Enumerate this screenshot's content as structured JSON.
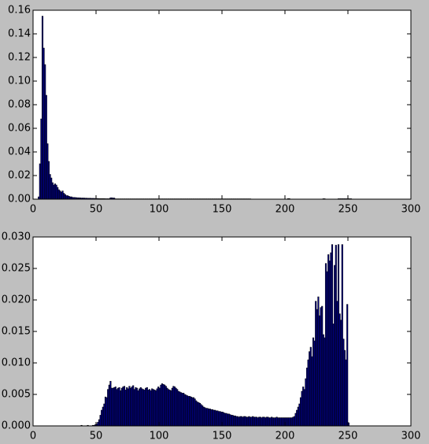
{
  "chart_data": [
    {
      "type": "histogram",
      "color": "#000080",
      "edgecolor": "#000000",
      "bins": [
        0,
        1,
        2,
        3,
        4,
        5,
        6,
        7,
        8,
        9,
        10,
        11,
        12,
        13,
        14,
        15,
        16,
        17,
        18,
        19,
        20,
        21,
        22,
        23,
        24,
        25,
        26,
        27,
        28,
        29,
        30,
        31,
        32,
        33,
        34,
        35,
        36,
        37,
        38,
        39,
        40,
        41,
        42,
        43,
        44,
        45,
        46,
        47,
        48,
        49,
        50,
        51,
        52,
        53,
        54,
        55,
        56,
        57,
        58,
        59,
        60,
        61,
        62,
        63,
        64,
        65,
        66,
        67,
        68,
        69,
        70,
        71,
        72,
        73,
        74,
        75,
        76,
        77,
        78,
        79,
        80,
        81,
        82,
        83,
        84,
        85,
        86,
        87,
        88,
        89,
        90,
        91,
        92,
        93,
        94,
        95,
        96,
        97,
        98,
        99,
        100,
        101,
        102,
        103,
        104,
        105,
        106,
        107,
        108,
        109,
        110,
        111,
        112,
        113,
        114,
        115,
        116,
        117,
        118,
        119,
        120,
        121,
        122,
        123,
        124,
        125,
        126,
        127,
        128,
        129,
        130,
        131,
        132,
        133,
        134,
        135,
        136,
        137,
        138,
        139,
        140,
        141,
        142,
        143,
        144,
        145,
        146,
        147,
        148,
        149,
        150,
        151,
        152,
        153,
        154,
        155,
        156,
        157,
        158,
        159,
        160,
        161,
        162,
        163,
        164,
        165,
        166,
        167,
        168,
        169,
        170,
        171,
        172,
        173,
        174,
        175,
        176,
        177,
        178,
        179,
        180,
        181,
        182,
        183,
        184,
        185,
        186,
        187,
        188,
        189,
        190,
        191,
        192,
        193,
        194,
        195,
        196,
        197,
        198,
        199,
        200,
        201,
        202,
        203,
        204,
        205,
        206,
        207,
        208,
        209,
        210,
        211,
        212,
        213,
        214,
        215,
        216,
        217,
        218,
        219,
        220,
        221,
        222,
        223,
        224,
        225,
        226,
        227,
        228,
        229,
        230,
        231,
        232,
        233,
        234,
        235,
        236,
        237,
        238,
        239,
        240,
        241,
        242,
        243,
        244,
        245,
        246,
        247,
        248,
        249,
        250,
        251,
        252,
        253,
        254,
        255,
        256
      ],
      "values": [
        0,
        0,
        0,
        0,
        0.002,
        0.03,
        0.068,
        0.155,
        0.128,
        0.114,
        0.088,
        0.047,
        0.032,
        0.021,
        0.018,
        0.014,
        0.012,
        0.013,
        0.012,
        0.01,
        0.008,
        0.007,
        0.006,
        0.007,
        0.005,
        0.004,
        0.003,
        0.003,
        0.0025,
        0.002,
        0.002,
        0.0015,
        0.0015,
        0.0014,
        0.0013,
        0.0012,
        0.0012,
        0.0011,
        0.001,
        0.001,
        0.001,
        0.0009,
        0.0009,
        0.0008,
        0.0008,
        0.0008,
        0.0007,
        0.0007,
        0.0007,
        0.0006,
        0.0006,
        0.0006,
        0.0005,
        0.0005,
        0.0005,
        0.0005,
        0.0005,
        0.0004,
        0.0004,
        0.0004,
        0.0004,
        0.0012,
        0.0012,
        0.001,
        0.001,
        0.0003,
        0.0003,
        0.0003,
        0.0003,
        0.0003,
        0.0003,
        0.0003,
        0.0003,
        0.0003,
        0.0003,
        0.0003,
        0.0003,
        0.0003,
        0.0003,
        0.0003,
        0.0003,
        0.0003,
        0.0003,
        0.0003,
        0.0003,
        0.0003,
        0.0003,
        0.0003,
        0.0003,
        0.0003,
        0.0003,
        0.0003,
        0.0003,
        0.0003,
        0.0003,
        0.0003,
        0.0003,
        0.0003,
        0.0003,
        0.0003,
        0.0003,
        0.0003,
        0.0003,
        0.0003,
        0.0003,
        0.0003,
        0.0003,
        0.0003,
        0.0003,
        0.0003,
        0.0003,
        0.0003,
        0.0003,
        0.0003,
        0.0003,
        0.0003,
        0.0003,
        0.0003,
        0.0003,
        0.0003,
        0.0003,
        0.0003,
        0.0003,
        0.0003,
        0.0003,
        0.0003,
        0.0003,
        0.0003,
        0.0003,
        0.0003,
        0.0003,
        0.0003,
        0.0003,
        0.0003,
        0.0003,
        0.0003,
        0.0003,
        0.0003,
        0.0003,
        0.0003,
        0.0003,
        0.0003,
        0.0003,
        0.0003,
        0.0003,
        0.0003,
        0.0003,
        0.0003,
        0.0003,
        0.0003,
        0.0003,
        0.0003,
        0.0003,
        0.0003,
        0.0003,
        0.0003,
        0.0003,
        0.0003,
        0.0003,
        0.0003,
        0.0003,
        0.0003,
        0.0003,
        0.0003,
        0.0003,
        0.0003,
        0.0003,
        0.0003,
        0.0003,
        0.0003,
        0.0003,
        0.0003,
        0.0003,
        0,
        0,
        0,
        0,
        0,
        0,
        0,
        0,
        0,
        0,
        0,
        0,
        0,
        0,
        0,
        0,
        0,
        0,
        0,
        0,
        0,
        0,
        0,
        0,
        0,
        0,
        0,
        0,
        0,
        0.0005,
        0.0005,
        0,
        0,
        0,
        0,
        0,
        0,
        0,
        0,
        0,
        0,
        0,
        0,
        0,
        0,
        0,
        0,
        0,
        0,
        0,
        0,
        0,
        0,
        0,
        0,
        0,
        0,
        0.0004,
        0.0004,
        0,
        0,
        0,
        0,
        0,
        0,
        0,
        0,
        0,
        0,
        0.0004,
        0.0004,
        0.0004,
        0.0004,
        0.0004,
        0.0004,
        0.0004,
        0.0004,
        0.0004,
        0.0004,
        0.0004,
        0,
        0,
        0
      ],
      "xlim": [
        0,
        300
      ],
      "xticks": [
        0,
        50,
        100,
        150,
        200,
        250,
        300
      ],
      "ylim": [
        0,
        0.16
      ],
      "yticks": [
        {
          "value": 0,
          "label": "0.00"
        },
        {
          "value": 0.02,
          "label": "0.02"
        },
        {
          "value": 0.04,
          "label": "0.04"
        },
        {
          "value": 0.06,
          "label": "0.06"
        },
        {
          "value": 0.08,
          "label": "0.08"
        },
        {
          "value": 0.1,
          "label": "0.10"
        },
        {
          "value": 0.12,
          "label": "0.12"
        },
        {
          "value": 0.14,
          "label": "0.14"
        },
        {
          "value": 0.16,
          "label": "0.16"
        }
      ]
    },
    {
      "type": "histogram",
      "color": "#000080",
      "edgecolor": "#000000",
      "bins": [
        0,
        1,
        2,
        3,
        4,
        5,
        6,
        7,
        8,
        9,
        10,
        11,
        12,
        13,
        14,
        15,
        16,
        17,
        18,
        19,
        20,
        21,
        22,
        23,
        24,
        25,
        26,
        27,
        28,
        29,
        30,
        31,
        32,
        33,
        34,
        35,
        36,
        37,
        38,
        39,
        40,
        41,
        42,
        43,
        44,
        45,
        46,
        47,
        48,
        49,
        50,
        51,
        52,
        53,
        54,
        55,
        56,
        57,
        58,
        59,
        60,
        61,
        62,
        63,
        64,
        65,
        66,
        67,
        68,
        69,
        70,
        71,
        72,
        73,
        74,
        75,
        76,
        77,
        78,
        79,
        80,
        81,
        82,
        83,
        84,
        85,
        86,
        87,
        88,
        89,
        90,
        91,
        92,
        93,
        94,
        95,
        96,
        97,
        98,
        99,
        100,
        101,
        102,
        103,
        104,
        105,
        106,
        107,
        108,
        109,
        110,
        111,
        112,
        113,
        114,
        115,
        116,
        117,
        118,
        119,
        120,
        121,
        122,
        123,
        124,
        125,
        126,
        127,
        128,
        129,
        130,
        131,
        132,
        133,
        134,
        135,
        136,
        137,
        138,
        139,
        140,
        141,
        142,
        143,
        144,
        145,
        146,
        147,
        148,
        149,
        150,
        151,
        152,
        153,
        154,
        155,
        156,
        157,
        158,
        159,
        160,
        161,
        162,
        163,
        164,
        165,
        166,
        167,
        168,
        169,
        170,
        171,
        172,
        173,
        174,
        175,
        176,
        177,
        178,
        179,
        180,
        181,
        182,
        183,
        184,
        185,
        186,
        187,
        188,
        189,
        190,
        191,
        192,
        193,
        194,
        195,
        196,
        197,
        198,
        199,
        200,
        201,
        202,
        203,
        204,
        205,
        206,
        207,
        208,
        209,
        210,
        211,
        212,
        213,
        214,
        215,
        216,
        217,
        218,
        219,
        220,
        221,
        222,
        223,
        224,
        225,
        226,
        227,
        228,
        229,
        230,
        231,
        232,
        233,
        234,
        235,
        236,
        237,
        238,
        239,
        240,
        241,
        242,
        243,
        244,
        245,
        246,
        247,
        248,
        249,
        250,
        251,
        252,
        253,
        254,
        255,
        256
      ],
      "values": [
        0,
        0,
        0,
        0,
        0,
        0,
        0,
        0,
        0,
        0,
        0,
        0,
        0,
        0,
        0,
        0,
        0,
        0,
        0,
        0,
        0,
        0,
        0,
        0,
        0,
        0,
        0,
        0,
        0,
        0,
        0,
        0,
        0,
        0,
        0,
        0,
        0,
        0,
        0.0001,
        0,
        0,
        0,
        0,
        0.0001,
        0,
        0,
        0,
        0.0001,
        0.0001,
        0.0002,
        0.0003,
        0.0006,
        0.001,
        0.0017,
        0.0025,
        0.003,
        0.0035,
        0.0046,
        0.0045,
        0.0058,
        0.0065,
        0.0071,
        0.006,
        0.006,
        0.0061,
        0.0062,
        0.0058,
        0.006,
        0.0061,
        0.0056,
        0.006,
        0.0062,
        0.0063,
        0.0057,
        0.0061,
        0.0059,
        0.0063,
        0.006,
        0.0062,
        0.0064,
        0.0058,
        0.0061,
        0.006,
        0.0056,
        0.0059,
        0.0061,
        0.0059,
        0.0058,
        0.0057,
        0.006,
        0.0061,
        0.0057,
        0.0058,
        0.0056,
        0.0059,
        0.0058,
        0.0057,
        0.0056,
        0.0059,
        0.0062,
        0.006,
        0.0065,
        0.0067,
        0.0066,
        0.0065,
        0.0063,
        0.006,
        0.0058,
        0.0057,
        0.0056,
        0.006,
        0.0063,
        0.0062,
        0.006,
        0.0058,
        0.0055,
        0.0054,
        0.0053,
        0.0052,
        0.0052,
        0.005,
        0.0049,
        0.0048,
        0.0047,
        0.0047,
        0.0046,
        0.0045,
        0.0045,
        0.0043,
        0.004,
        0.0038,
        0.0037,
        0.0036,
        0.0034,
        0.0032,
        0.003,
        0.0029,
        0.0028,
        0.0028,
        0.0027,
        0.0027,
        0.0026,
        0.0026,
        0.0025,
        0.0025,
        0.0024,
        0.0024,
        0.0023,
        0.0023,
        0.0022,
        0.0022,
        0.0021,
        0.002,
        0.002,
        0.0019,
        0.0019,
        0.0018,
        0.0017,
        0.0017,
        0.0016,
        0.0016,
        0.0015,
        0.0015,
        0.0014,
        0.0015,
        0.0015,
        0.0014,
        0.0015,
        0.0015,
        0.0014,
        0.0014,
        0.0015,
        0.0014,
        0.0014,
        0.0015,
        0.0014,
        0.0014,
        0.0014,
        0.0013,
        0.0014,
        0.0014,
        0.0013,
        0.0014,
        0.0014,
        0.0013,
        0.0014,
        0.0014,
        0.0013,
        0.0013,
        0.0014,
        0.0013,
        0.0013,
        0.0013,
        0.0014,
        0.0013,
        0.0013,
        0.0013,
        0.0013,
        0.0013,
        0.0013,
        0.0013,
        0.0013,
        0.0013,
        0.0013,
        0.0013,
        0.0013,
        0.0014,
        0.0015,
        0.002,
        0.0025,
        0.003,
        0.0035,
        0.0045,
        0.0055,
        0.0062,
        0.0058,
        0.0075,
        0.0092,
        0.0105,
        0.0118,
        0.0125,
        0.011,
        0.014,
        0.0135,
        0.0198,
        0.0185,
        0.0205,
        0.0175,
        0.0188,
        0.019,
        0.0145,
        0.014,
        0.0258,
        0.0245,
        0.0272,
        0.0262,
        0.0275,
        0.0288,
        0.0162,
        0.0255,
        0.0287,
        0.0198,
        0.0288,
        0.0178,
        0.0168,
        0.0288,
        0.0138,
        0.012,
        0.0105,
        0.0193,
        0.0005,
        0,
        0,
        0,
        0,
        0
      ],
      "xlim": [
        0,
        300
      ],
      "xticks": [
        0,
        50,
        100,
        150,
        200,
        250,
        300
      ],
      "ylim": [
        0,
        0.03
      ],
      "yticks": [
        {
          "value": 0,
          "label": "0.000"
        },
        {
          "value": 0.005,
          "label": "0.005"
        },
        {
          "value": 0.01,
          "label": "0.010"
        },
        {
          "value": 0.015,
          "label": "0.015"
        },
        {
          "value": 0.02,
          "label": "0.020"
        },
        {
          "value": 0.025,
          "label": "0.025"
        },
        {
          "value": 0.03,
          "label": "0.030"
        }
      ]
    }
  ]
}
